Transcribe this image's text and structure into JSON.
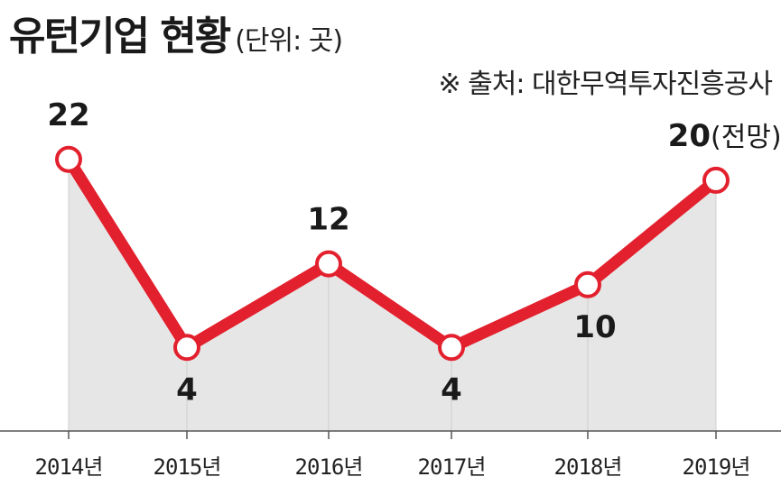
{
  "header": {
    "title": "유턴기업 현황",
    "unit": "(단위: 곳)",
    "source": "※ 출처: 대한무역투자진흥공사"
  },
  "chart_data": {
    "type": "line",
    "categories": [
      "2014년",
      "2015년",
      "2016년",
      "2017년",
      "2018년",
      "2019년"
    ],
    "values": [
      22,
      4,
      12,
      4,
      10,
      20
    ],
    "value_labels": [
      "22",
      "4",
      "12",
      "4",
      "10",
      "20"
    ],
    "annotations": [
      {
        "category": "2019년",
        "text": "(전망)"
      }
    ],
    "ylim": [
      -4,
      25
    ],
    "grid": false,
    "colors": {
      "line": "#e3202d",
      "marker_fill": "#ffffff",
      "area_fill": "#e6e6e6",
      "axis": "#555555",
      "text": "#1a1a1a"
    }
  }
}
